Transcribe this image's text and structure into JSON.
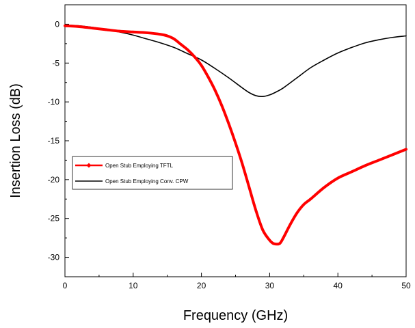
{
  "chart_data": {
    "type": "line",
    "title": "",
    "xlabel": "Frequency (GHz)",
    "ylabel": "Insertion Loss (dB)",
    "xlim": [
      0,
      50
    ],
    "ylim": [
      -32.5,
      2.5
    ],
    "xticks": [
      0,
      10,
      20,
      30,
      40,
      50
    ],
    "yticks": [
      0,
      -5,
      -10,
      -15,
      -20,
      -25,
      -30
    ],
    "grid": false,
    "legend_position": "center-left",
    "series": [
      {
        "name": "Open Stub Employing TFTL",
        "color": "#ff0000",
        "marker": "diamond",
        "x": [
          0,
          2,
          4,
          6,
          8,
          10,
          12,
          14,
          15,
          16,
          17,
          18,
          19,
          20,
          21,
          22,
          23,
          24,
          25,
          26,
          27,
          28,
          29,
          30,
          30.5,
          31,
          31.5,
          32,
          33,
          34,
          35,
          36,
          38,
          40,
          42,
          44,
          46,
          48,
          50
        ],
        "y": [
          -0.2,
          -0.3,
          -0.5,
          -0.7,
          -0.9,
          -1.0,
          -1.1,
          -1.3,
          -1.5,
          -1.9,
          -2.6,
          -3.3,
          -4.2,
          -5.3,
          -6.8,
          -8.5,
          -10.5,
          -12.8,
          -15.3,
          -18.0,
          -21.0,
          -24.0,
          -26.5,
          -27.8,
          -28.2,
          -28.3,
          -28.2,
          -27.5,
          -25.8,
          -24.3,
          -23.2,
          -22.5,
          -21.0,
          -19.8,
          -19.0,
          -18.2,
          -17.5,
          -16.8,
          -16.1
        ]
      },
      {
        "name": "Open Stub Employing Conv. CPW",
        "color": "#000000",
        "marker": "none",
        "x": [
          0,
          2,
          4,
          6,
          8,
          10,
          12,
          14,
          16,
          18,
          20,
          22,
          24,
          26,
          27,
          28,
          29,
          30,
          31,
          32,
          34,
          36,
          38,
          40,
          42,
          44,
          46,
          48,
          50
        ],
        "y": [
          -0.1,
          -0.2,
          -0.4,
          -0.7,
          -1.0,
          -1.4,
          -1.9,
          -2.4,
          -3.0,
          -3.8,
          -4.6,
          -5.7,
          -6.9,
          -8.2,
          -8.8,
          -9.2,
          -9.3,
          -9.1,
          -8.7,
          -8.2,
          -6.9,
          -5.6,
          -4.6,
          -3.7,
          -3.0,
          -2.4,
          -2.0,
          -1.7,
          -1.5
        ]
      }
    ]
  }
}
